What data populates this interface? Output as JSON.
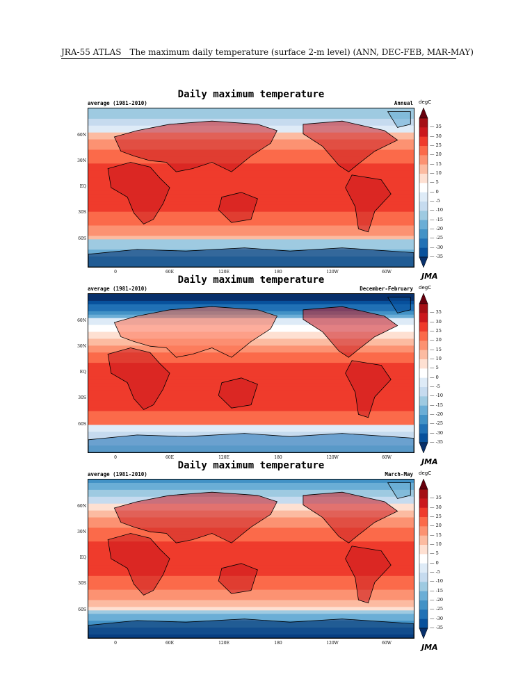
{
  "header": {
    "atlas": "JRA-55 ATLAS",
    "description": "The maximum daily temperature (surface 2-m level) (ANN, DEC-FEB, MAR-MAY)"
  },
  "colorbar": {
    "unit": "degC",
    "ticks": [
      "35",
      "30",
      "25",
      "20",
      "15",
      "10",
      "5",
      "0",
      "-5",
      "-10",
      "-15",
      "-20",
      "-25",
      "-30",
      "-35"
    ],
    "colors": [
      "#67000d",
      "#a50f15",
      "#cb181d",
      "#ef3b2c",
      "#fb6a4a",
      "#fc9272",
      "#fcbba1",
      "#fee0d2",
      "#ffffff",
      "#deebf7",
      "#c6dbef",
      "#9ecae1",
      "#6baed6",
      "#4292c6",
      "#2171b5",
      "#08519c",
      "#08306b"
    ]
  },
  "axis_labels": {
    "lat": [
      "60N",
      "30N",
      "EQ",
      "30S",
      "60S"
    ],
    "lon": [
      "0",
      "60E",
      "120E",
      "180",
      "120W",
      "60W"
    ]
  },
  "panels": [
    {
      "title": "Daily maximum temperature",
      "period": "average (1981-2010)",
      "season": "Annual",
      "logo": "JMA",
      "tint": {
        "north": 0,
        "south": 0
      }
    },
    {
      "title": "Daily maximum temperature",
      "period": "average (1981-2010)",
      "season": "December-February",
      "logo": "JMA",
      "tint": {
        "north": -12,
        "south": 6
      }
    },
    {
      "title": "Daily maximum temperature",
      "period": "average (1981-2010)",
      "season": "March-May",
      "logo": "JMA",
      "tint": {
        "north": -3,
        "south": -3
      }
    }
  ]
}
